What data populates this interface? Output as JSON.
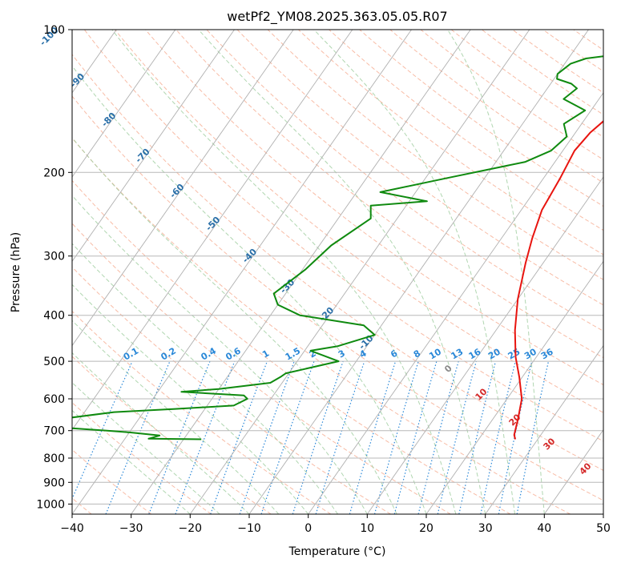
{
  "chart_data": {
    "type": "line",
    "title": "wetPf2_YM08.2025.363.05.05.R07",
    "xlabel": "Temperature (°C)",
    "ylabel": "Pressure (hPa)",
    "xlim": [
      -40,
      50
    ],
    "ylim": [
      1050,
      100
    ],
    "y_scale": "log",
    "x_ticks": [
      -40,
      -30,
      -20,
      -10,
      0,
      10,
      20,
      30,
      40,
      50
    ],
    "x_tick_labels": [
      "−40",
      "−30",
      "−20",
      "−10",
      "0",
      "10",
      "20",
      "30",
      "40",
      "50"
    ],
    "y_ticks": [
      100,
      200,
      300,
      400,
      500,
      600,
      700,
      800,
      900,
      1000
    ],
    "y_tick_labels": [
      "100",
      "200",
      "300",
      "400",
      "500",
      "600",
      "700",
      "800",
      "900",
      "1000"
    ],
    "grid": true,
    "skew_labels": [
      "-100",
      "-90",
      "-80",
      "-70",
      "-60",
      "-50",
      "-40",
      "-30",
      "-20",
      "-10",
      "0",
      "10",
      "20",
      "30",
      "40"
    ],
    "mixing_ratio_labels": [
      "0.1",
      "0.2",
      "0.4",
      "0.6",
      "1",
      "1.5",
      "2",
      "3",
      "4",
      "6",
      "8",
      "10",
      "13",
      "16",
      "20",
      "25",
      "30",
      "36"
    ],
    "colors": {
      "temperature": "#e8140f",
      "dewpoint": "#0f8a0f",
      "isotherm": "#b0b0b0",
      "dry_adiabat": "#f5a688",
      "moist_adiabat": "#9ccc9c",
      "mixing_ratio": "#2a88d8",
      "skew_label": "#2a6fa8",
      "warm_label": "#d42a2a"
    },
    "series": [
      {
        "label": "temperature",
        "points": [
          [
            26.2,
            730
          ],
          [
            25.5,
            715
          ],
          [
            24.2,
            660
          ],
          [
            22.5,
            600
          ],
          [
            19.5,
            540
          ],
          [
            16.5,
            490
          ],
          [
            13.2,
            430
          ],
          [
            10.0,
            370
          ],
          [
            7.0,
            310
          ],
          [
            5.2,
            275
          ],
          [
            3.5,
            240
          ],
          [
            2.8,
            205
          ],
          [
            2.0,
            180
          ],
          [
            2.5,
            165
          ],
          [
            4.0,
            150
          ],
          [
            6.5,
            135
          ],
          [
            7.0,
            125
          ],
          [
            6.0,
            115
          ],
          [
            6.2,
            105
          ],
          [
            8.0,
            100
          ]
        ]
      },
      {
        "label": "dewpoint",
        "points": [
          [
            -27.0,
            730
          ],
          [
            -36.0,
            728
          ],
          [
            -34.5,
            717
          ],
          [
            -40.0,
            706
          ],
          [
            -44.0,
            700
          ],
          [
            -60.0,
            680
          ],
          [
            -45.0,
            640
          ],
          [
            -35.0,
            630
          ],
          [
            -25.5,
            620
          ],
          [
            -24.0,
            600
          ],
          [
            -25.0,
            590
          ],
          [
            -36.0,
            580
          ],
          [
            -30.0,
            572
          ],
          [
            -22.0,
            555
          ],
          [
            -21.0,
            540
          ],
          [
            -20.5,
            530
          ],
          [
            -13.0,
            500
          ],
          [
            -19.0,
            475
          ],
          [
            -15.0,
            465
          ],
          [
            -10.0,
            440
          ],
          [
            -13.0,
            420
          ],
          [
            -25.0,
            400
          ],
          [
            -30.0,
            380
          ],
          [
            -32.0,
            360
          ],
          [
            -29.5,
            320
          ],
          [
            -28.0,
            285
          ],
          [
            -24.5,
            250
          ],
          [
            -26.0,
            235
          ],
          [
            -17.0,
            230
          ],
          [
            -26.0,
            220
          ],
          [
            -16.0,
            205
          ],
          [
            -5.0,
            190
          ],
          [
            -2.0,
            180
          ],
          [
            -1.0,
            168
          ],
          [
            -3.0,
            158
          ],
          [
            -1.0,
            148
          ],
          [
            -6.0,
            140
          ],
          [
            -5.0,
            133
          ],
          [
            -6.5,
            130
          ],
          [
            -9.5,
            127
          ],
          [
            -10.0,
            124
          ],
          [
            -9.0,
            118
          ],
          [
            -7.0,
            115
          ],
          [
            4.0,
            110
          ],
          [
            13.0,
            105
          ],
          [
            17.0,
            100
          ]
        ]
      }
    ]
  }
}
